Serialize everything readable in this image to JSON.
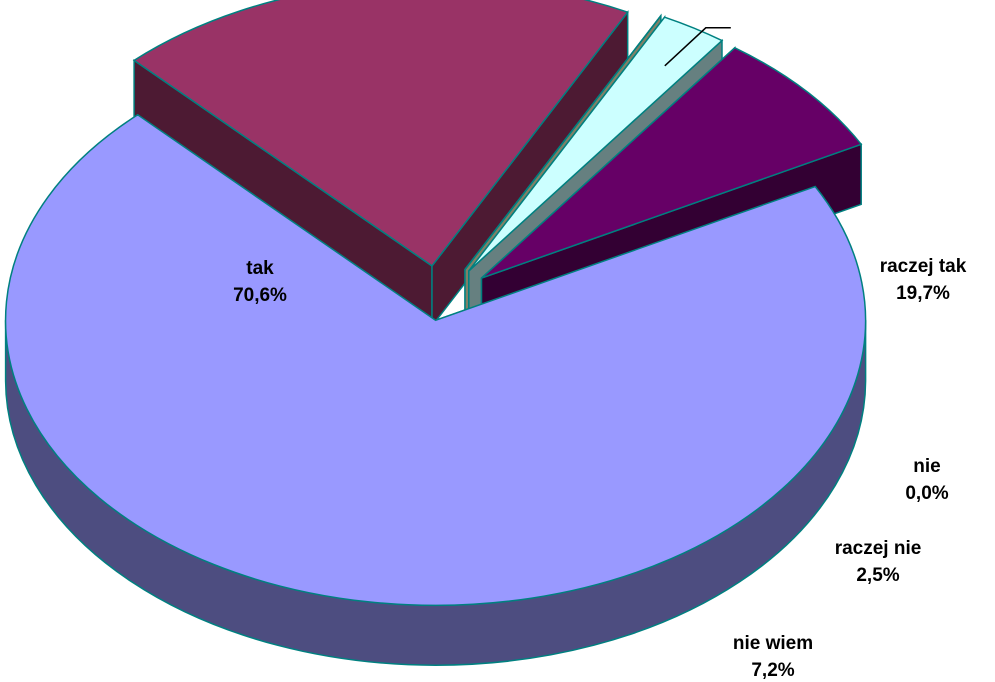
{
  "chart_data": {
    "type": "pie",
    "three_d": true,
    "exploded": true,
    "title": "",
    "legend": "none",
    "slices": [
      {
        "name": "tak",
        "value": 70.6,
        "value_label": "70,6%",
        "color": "#9999FF",
        "side_color": "#4D4D80"
      },
      {
        "name": "raczej tak",
        "value": 19.7,
        "value_label": "19,7%",
        "color": "#993366",
        "side_color": "#4D1A33"
      },
      {
        "name": "nie",
        "value": 0.0,
        "value_label": "0,0%",
        "color": "#FFFFCC",
        "side_color": "#808066"
      },
      {
        "name": "raczej nie",
        "value": 2.5,
        "value_label": "2,5%",
        "color": "#CCFFFF",
        "side_color": "#668080"
      },
      {
        "name": "nie wiem",
        "value": 7.2,
        "value_label": "7,2%",
        "color": "#660066",
        "side_color": "#330033"
      }
    ],
    "edge_color": "#008080"
  }
}
